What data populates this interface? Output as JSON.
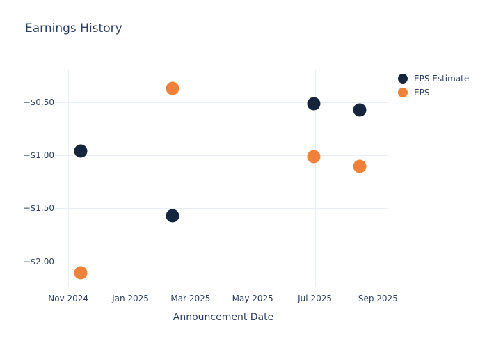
{
  "chart_data": {
    "type": "scatter",
    "title": "Earnings History",
    "xlabel": "Announcement Date",
    "ylabel": "",
    "grid": true,
    "legend_position": "right-top-outside",
    "background_color": "#ffffff",
    "grid_color": "#e9edf5",
    "text_color": "#2a3f5f",
    "x_range": [
      "2024-10-23",
      "2025-09-11"
    ],
    "y_range": [
      -2.2,
      -0.19
    ],
    "x_ticks": [
      {
        "date": "2024-11-01",
        "label": "Nov 2024"
      },
      {
        "date": "2025-01-01",
        "label": "Jan 2025"
      },
      {
        "date": "2025-03-01",
        "label": "Mar 2025"
      },
      {
        "date": "2025-05-01",
        "label": "May 2025"
      },
      {
        "date": "2025-07-01",
        "label": "Jul 2025"
      },
      {
        "date": "2025-09-01",
        "label": "Sep 2025"
      }
    ],
    "y_ticks": [
      {
        "value": -0.5,
        "label": "−$0.50"
      },
      {
        "value": -1.0,
        "label": "−$1.00"
      },
      {
        "value": -1.5,
        "label": "−$1.50"
      },
      {
        "value": -2.0,
        "label": "−$2.00"
      }
    ],
    "series": [
      {
        "name": "EPS Estimate",
        "color": "#16253e",
        "points": [
          {
            "date": "2024-11-13",
            "value": -0.96
          },
          {
            "date": "2025-02-11",
            "value": -1.57
          },
          {
            "date": "2025-06-30",
            "value": -0.51
          },
          {
            "date": "2025-08-14",
            "value": -0.57
          }
        ]
      },
      {
        "name": "EPS",
        "color": "#f0813a",
        "points": [
          {
            "date": "2024-11-13",
            "value": -2.11
          },
          {
            "date": "2025-02-11",
            "value": -0.37
          },
          {
            "date": "2025-06-30",
            "value": -1.01
          },
          {
            "date": "2025-08-14",
            "value": -1.1
          }
        ]
      }
    ]
  }
}
